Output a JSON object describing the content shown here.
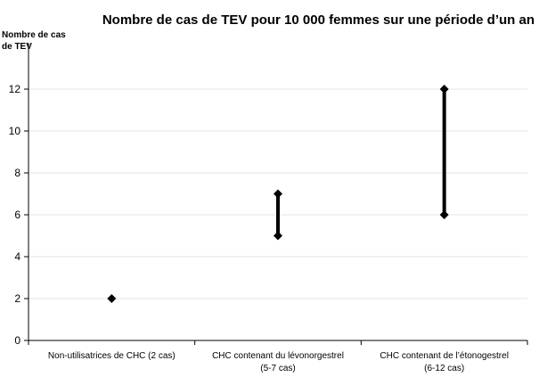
{
  "chart_data": {
    "type": "range",
    "title": "Nombre de cas de TEV pour 10 000 femmes sur une période d’un an",
    "ylabel_lines": [
      "Nombre  de  cas",
      "de TEV"
    ],
    "ylim": [
      0,
      12
    ],
    "yticks": [
      0,
      2,
      4,
      6,
      8,
      10,
      12
    ],
    "grid": true,
    "categories": [
      {
        "lines": [
          "Non-utilisatrices de CHC (2 cas)"
        ],
        "low": 2,
        "high": 2
      },
      {
        "lines": [
          "CHC contenant du lévonorgestrel",
          "(5-7 cas)"
        ],
        "low": 5,
        "high": 7
      },
      {
        "lines": [
          "CHC contenant de l’étonogestrel",
          "(6-12 cas)"
        ],
        "low": 6,
        "high": 12
      }
    ],
    "colors": {
      "marker": "#000000",
      "grid": "#e6e6e6",
      "axis": "#000000"
    }
  }
}
